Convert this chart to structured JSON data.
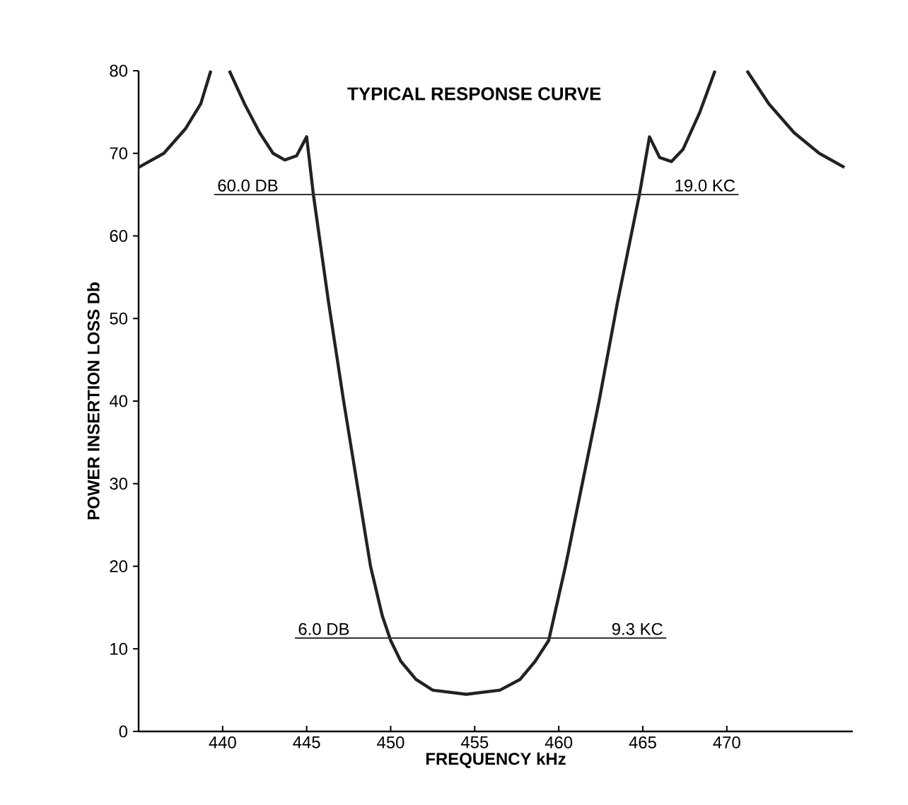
{
  "chart_data": {
    "type": "line",
    "title": "TYPICAL RESPONSE CURVE",
    "xlabel": "FREQUENCY kHz",
    "ylabel": "POWER INSERTION LOSS Db",
    "xlim": [
      435,
      477.5
    ],
    "ylim": [
      0,
      80
    ],
    "xticks": [
      440,
      445,
      450,
      455,
      460,
      465,
      470
    ],
    "yticks": [
      0,
      10,
      20,
      30,
      40,
      50,
      60,
      70,
      80
    ],
    "series": [
      {
        "color": "#222222",
        "x": [
          435,
          436.5,
          437.8,
          438.7,
          439.3,
          439.8,
          440.4,
          441.3,
          442.2,
          443,
          443.7,
          444.4,
          445.0,
          445.4,
          446.3,
          447.2,
          448,
          448.8,
          449.5,
          450,
          450.6,
          451.5,
          452.5,
          454.5,
          456.5,
          457.7,
          458.6,
          459.4,
          460.4,
          461.4,
          462.4,
          463.5,
          464.8,
          465.4,
          466,
          466.7,
          467.4,
          468.4,
          469.3,
          470.2,
          471.2,
          472.5,
          474,
          475.5,
          477
        ],
        "values": [
          68.3,
          70,
          73,
          76,
          80,
          null,
          80,
          76,
          72.5,
          70,
          69.2,
          69.7,
          72,
          65,
          52,
          40,
          30,
          20,
          14,
          11,
          8.5,
          6.3,
          5,
          4.5,
          5,
          6.3,
          8.5,
          11,
          20,
          30,
          40,
          52,
          65,
          72,
          69.5,
          69,
          70.5,
          75,
          80,
          null,
          80,
          76,
          72.5,
          70,
          68.3
        ]
      },
      {
        "color": "#333333",
        "x": [
          439.5,
          470.7
        ],
        "values": [
          65,
          65
        ]
      },
      {
        "color": "#333333",
        "x": [
          444.3,
          466.4
        ],
        "values": [
          11.3,
          11.3
        ]
      }
    ],
    "annotations": [
      {
        "text": "60.0 DB",
        "x": 439.5,
        "y": 65
      },
      {
        "text": "19.0 KC",
        "x": 470.7,
        "y": 65
      },
      {
        "text": "6.0 DB",
        "x": 444.3,
        "y": 11.3
      },
      {
        "text": "9.3 KC",
        "x": 466.4,
        "y": 11.3
      }
    ]
  }
}
